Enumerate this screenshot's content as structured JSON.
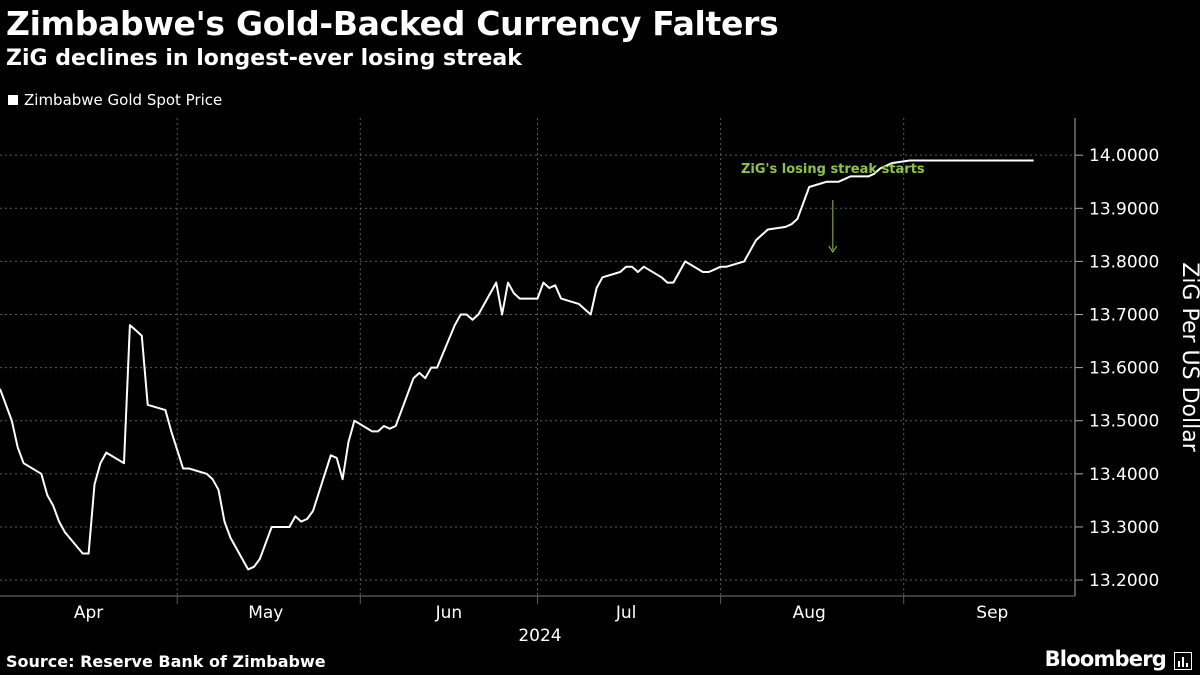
{
  "header": {
    "title": "Zimbabwe's Gold-Backed Currency Falters",
    "subtitle": "ZiG declines in longest-ever losing streak"
  },
  "footer": {
    "source": "Source: Reserve Bank of Zimbabwe",
    "brand": "Bloomberg"
  },
  "colors": {
    "background": "#000000",
    "line": "#ffffff",
    "annotation": "#8cc63f",
    "grid": "#5a5a5a"
  },
  "chart_data": {
    "type": "line",
    "title": "Zimbabwe's Gold-Backed Currency Falters",
    "subtitle": "ZiG declines in longest-ever losing streak",
    "ylabel": "ZiG Per US Dollar",
    "xlabel": "2024",
    "ylim": [
      13.17,
      14.07
    ],
    "y_ticks": [
      "13.2000",
      "13.3000",
      "13.4000",
      "13.5000",
      "13.6000",
      "13.7000",
      "13.8000",
      "13.9000",
      "14.0000"
    ],
    "y_tick_values": [
      13.2,
      13.3,
      13.4,
      13.5,
      13.6,
      13.7,
      13.8,
      13.9,
      14.0
    ],
    "x_range": [
      "2024-04-01",
      "2024-09-30"
    ],
    "x_ticks": [
      "Apr",
      "May",
      "Jun",
      "Jul",
      "Aug",
      "Sep"
    ],
    "x_tick_dates": [
      "2024-04-16",
      "2024-05-16",
      "2024-06-16",
      "2024-07-16",
      "2024-08-16",
      "2024-09-16"
    ],
    "month_boundaries": [
      "2024-05-01",
      "2024-06-01",
      "2024-07-01",
      "2024-08-01",
      "2024-09-01"
    ],
    "x_year_label": "2024",
    "grid": true,
    "legend_position": "top-left",
    "series": [
      {
        "name": "Zimbabwe Gold Spot Price",
        "x": [
          "2024-04-01",
          "2024-04-03",
          "2024-04-04",
          "2024-04-05",
          "2024-04-08",
          "2024-04-09",
          "2024-04-10",
          "2024-04-11",
          "2024-04-12",
          "2024-04-15",
          "2024-04-16",
          "2024-04-17",
          "2024-04-18",
          "2024-04-19",
          "2024-04-22",
          "2024-04-23",
          "2024-04-24",
          "2024-04-25",
          "2024-04-26",
          "2024-04-29",
          "2024-04-30",
          "2024-05-02",
          "2024-05-03",
          "2024-05-06",
          "2024-05-07",
          "2024-05-08",
          "2024-05-09",
          "2024-05-10",
          "2024-05-13",
          "2024-05-14",
          "2024-05-15",
          "2024-05-16",
          "2024-05-17",
          "2024-05-20",
          "2024-05-21",
          "2024-05-22",
          "2024-05-23",
          "2024-05-24",
          "2024-05-27",
          "2024-05-28",
          "2024-05-29",
          "2024-05-30",
          "2024-05-31",
          "2024-06-03",
          "2024-06-04",
          "2024-06-05",
          "2024-06-06",
          "2024-06-07",
          "2024-06-10",
          "2024-06-11",
          "2024-06-12",
          "2024-06-13",
          "2024-06-14",
          "2024-06-17",
          "2024-06-18",
          "2024-06-19",
          "2024-06-20",
          "2024-06-21",
          "2024-06-24",
          "2024-06-25",
          "2024-06-26",
          "2024-06-27",
          "2024-06-28",
          "2024-07-01",
          "2024-07-02",
          "2024-07-03",
          "2024-07-04",
          "2024-07-05",
          "2024-07-08",
          "2024-07-09",
          "2024-07-10",
          "2024-07-11",
          "2024-07-12",
          "2024-07-15",
          "2024-07-16",
          "2024-07-17",
          "2024-07-18",
          "2024-07-19",
          "2024-07-22",
          "2024-07-23",
          "2024-07-24",
          "2024-07-25",
          "2024-07-26",
          "2024-07-29",
          "2024-07-30",
          "2024-07-31",
          "2024-08-01",
          "2024-08-02",
          "2024-08-05",
          "2024-08-06",
          "2024-08-07",
          "2024-08-08",
          "2024-08-09",
          "2024-08-12",
          "2024-08-13",
          "2024-08-14",
          "2024-08-15",
          "2024-08-16",
          "2024-08-19",
          "2024-08-20",
          "2024-08-21",
          "2024-08-22",
          "2024-08-23",
          "2024-08-26",
          "2024-08-27",
          "2024-08-28",
          "2024-08-29",
          "2024-08-30",
          "2024-09-02",
          "2024-09-03",
          "2024-09-04",
          "2024-09-05",
          "2024-09-06",
          "2024-09-09",
          "2024-09-10",
          "2024-09-11",
          "2024-09-12",
          "2024-09-13",
          "2024-09-16",
          "2024-09-17",
          "2024-09-18",
          "2024-09-19",
          "2024-09-20",
          "2024-09-23"
        ],
        "values": [
          13.56,
          13.5,
          13.45,
          13.42,
          13.4,
          13.36,
          13.34,
          13.31,
          13.29,
          13.25,
          13.25,
          13.38,
          13.42,
          13.44,
          13.42,
          13.68,
          13.67,
          13.66,
          13.53,
          13.52,
          13.48,
          13.41,
          13.41,
          13.4,
          13.39,
          13.37,
          13.31,
          13.28,
          13.22,
          13.225,
          13.24,
          13.27,
          13.3,
          13.3,
          13.32,
          13.31,
          13.315,
          13.33,
          13.435,
          13.43,
          13.39,
          13.46,
          13.5,
          13.48,
          13.48,
          13.49,
          13.485,
          13.49,
          13.58,
          13.59,
          13.58,
          13.6,
          13.6,
          13.68,
          13.7,
          13.7,
          13.69,
          13.7,
          13.76,
          13.7,
          13.76,
          13.74,
          13.73,
          13.73,
          13.76,
          13.75,
          13.755,
          13.73,
          13.72,
          13.71,
          13.7,
          13.75,
          13.77,
          13.78,
          13.79,
          13.79,
          13.78,
          13.79,
          13.77,
          13.76,
          13.76,
          13.78,
          13.8,
          13.78,
          13.78,
          13.785,
          13.79,
          13.79,
          13.8,
          13.82,
          13.84,
          13.85,
          13.86,
          13.865,
          13.87,
          13.88,
          13.91,
          13.94,
          13.95,
          13.95,
          13.95,
          13.955,
          13.96,
          13.96,
          13.965,
          13.975,
          13.98,
          13.985,
          13.99,
          13.99,
          13.99,
          13.99,
          13.99,
          13.99,
          13.99,
          13.99,
          13.99,
          13.99,
          13.99,
          13.99,
          13.99,
          13.99,
          13.99,
          13.99
        ]
      }
    ],
    "annotations": [
      {
        "text": "ZiG's losing streak starts",
        "x": "2024-08-20",
        "y": 13.81
      }
    ]
  }
}
